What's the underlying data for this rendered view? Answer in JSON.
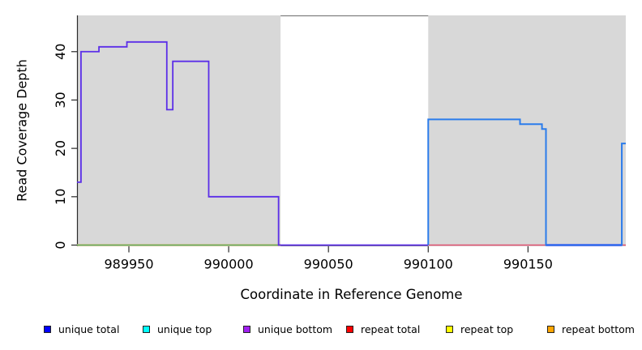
{
  "figure": {
    "xlabel": "Coordinate in Reference Genome",
    "ylabel": "Read Coverage Depth",
    "background": "#ffffff",
    "shading_color": "#d8d8d8",
    "axis_color": "#2a2a2a",
    "box_color": "#808080"
  },
  "legend": {
    "items": [
      {
        "label": "unique total",
        "color": "#0000ff",
        "border": "#222222"
      },
      {
        "label": "unique top",
        "color": "#00ffff",
        "border": "#222222"
      },
      {
        "label": "unique bottom",
        "color": "#a020f0",
        "border": "#222222"
      },
      {
        "label": "repeat total",
        "color": "#ff0000",
        "border": "#222222"
      },
      {
        "label": "repeat top",
        "color": "#ffff00",
        "border": "#222222"
      },
      {
        "label": "repeat bottom",
        "color": "#ffa500",
        "border": "#222222"
      }
    ]
  },
  "chart_data": {
    "type": "line",
    "step": true,
    "title": "",
    "xlabel": "Coordinate in Reference Genome",
    "ylabel": "Read Coverage Depth",
    "xlim": [
      989924,
      990199
    ],
    "ylim": [
      0,
      47.5
    ],
    "xticks": [
      989950,
      990000,
      990050,
      990100,
      990150
    ],
    "yticks": [
      0,
      10,
      20,
      30,
      40
    ],
    "grid": false,
    "legend_position": "bottom",
    "shaded_regions": [
      {
        "name": "repeat-region-left",
        "x0": 989924,
        "x1": 990026
      },
      {
        "name": "repeat-region-right",
        "x0": 990100,
        "x1": 990199
      }
    ],
    "box_top_segment": {
      "x0": 990026,
      "x1": 990100
    },
    "series": [
      {
        "name": "baseline-orange-left",
        "color": "#f0b472",
        "width": 2.6,
        "points": [
          [
            989924,
            0
          ],
          [
            990026,
            0
          ]
        ]
      },
      {
        "name": "baseline-green-left",
        "color": "#5ab36a",
        "width": 1.5,
        "points": [
          [
            989924,
            0
          ],
          [
            990026,
            0
          ]
        ]
      },
      {
        "name": "baseline-red-right",
        "color": "#e04f6e",
        "width": 1.5,
        "points": [
          [
            990100,
            0
          ],
          [
            990199,
            0
          ]
        ]
      },
      {
        "name": "baseline-purple-shadow-right",
        "color": "#8a63ee",
        "width": 3,
        "points": [
          [
            990159,
            0
          ],
          [
            990197,
            0
          ]
        ]
      },
      {
        "name": "unique-coverage-left",
        "color": "#5b2ee8",
        "width": 1.8,
        "points": [
          [
            989924,
            13
          ],
          [
            989926,
            13
          ],
          [
            989926,
            40
          ],
          [
            989935,
            40
          ],
          [
            989935,
            41
          ],
          [
            989949,
            41
          ],
          [
            989949,
            42
          ],
          [
            989969,
            42
          ],
          [
            989969,
            28
          ],
          [
            989972,
            28
          ],
          [
            989972,
            38
          ],
          [
            989990,
            38
          ],
          [
            989990,
            10
          ],
          [
            990025,
            10
          ],
          [
            990025,
            0
          ],
          [
            990100,
            0
          ]
        ]
      },
      {
        "name": "unique-coverage-right",
        "color": "#2b7ceb",
        "width": 2,
        "points": [
          [
            990100,
            0
          ],
          [
            990100,
            26
          ],
          [
            990146,
            26
          ],
          [
            990146,
            25
          ],
          [
            990157,
            25
          ],
          [
            990157,
            24
          ],
          [
            990159,
            24
          ],
          [
            990159,
            0
          ],
          [
            990197,
            0
          ],
          [
            990197,
            21
          ],
          [
            990199,
            21
          ]
        ]
      }
    ]
  }
}
